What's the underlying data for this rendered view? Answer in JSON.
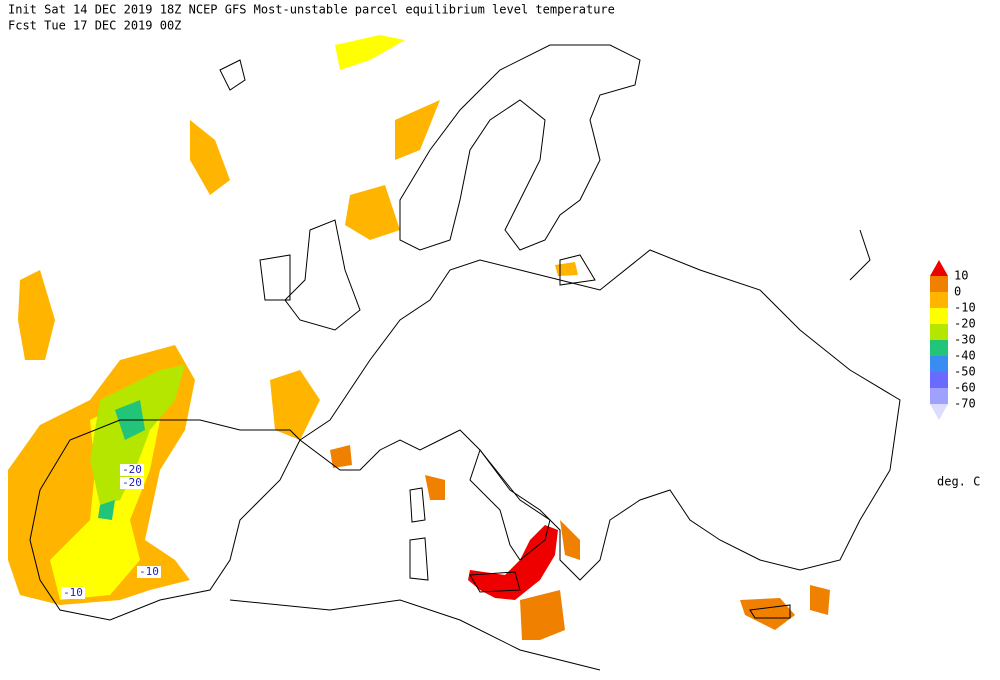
{
  "header": {
    "line1": "Init  Sat 14 DEC 2019 18Z  NCEP GFS Most-unstable parcel equilibrium level temperature",
    "line2": "Fcst Tue 17 DEC 2019 00Z"
  },
  "legend": {
    "labels": [
      10,
      0,
      -10,
      -20,
      -30,
      -40,
      -50,
      -60,
      -70
    ],
    "colors": [
      "#ee0000",
      "#f08000",
      "#ffb400",
      "#ffff00",
      "#b4e600",
      "#22c47a",
      "#3a8cf0",
      "#6a6aff",
      "#a0a0ff",
      "#dcdcff"
    ],
    "unit": "deg. C"
  },
  "contour_labels": [
    -20,
    -20,
    -10,
    -10
  ]
}
